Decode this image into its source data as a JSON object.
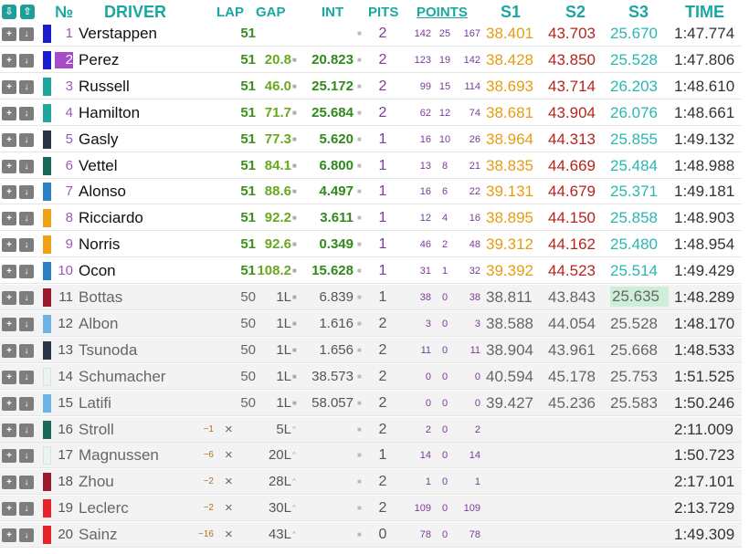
{
  "header": {
    "icon_down": "⇩",
    "icon_up": "⇧",
    "no": "№",
    "driver": "DRIVER",
    "lap": "LAP",
    "gap": "GAP",
    "int": "INT",
    "pits": "PITS",
    "points": "POINTS",
    "s1": "S1",
    "s2": "S2",
    "s3": "S3",
    "time": "TIME"
  },
  "controls": {
    "up_symbol": "+",
    "down_symbol": "↓",
    "marker": "■",
    "delta_marker": "^"
  },
  "colors": {
    "accent": "#1aa7a1",
    "sector1": "#e89b12",
    "sector2": "#b3261e",
    "sector3": "#29b7b2",
    "best_sector_bg": "#cdeed9"
  },
  "rows": [
    {
      "pos": "1",
      "name": "Verstappen",
      "color": "#1b1bd0",
      "lap": "51",
      "lap_delta": "",
      "gap": "",
      "int": "",
      "pits": "2",
      "pts_a": "142",
      "pts_b": "25",
      "pts_c": "167",
      "s1": "38.401",
      "s2": "43.703",
      "s3": "25.670",
      "time": "1:47.774",
      "lapped": false,
      "retired": false
    },
    {
      "pos": "2",
      "name": "Perez",
      "color": "#1b1bd0",
      "lap": "51",
      "lap_delta": "",
      "gap": "20.8",
      "int": "20.823",
      "pits": "2",
      "pts_a": "123",
      "pts_b": "19",
      "pts_c": "142",
      "s1": "38.428",
      "s2": "43.850",
      "s3": "25.528",
      "time": "1:47.806",
      "lapped": false,
      "retired": false,
      "badge": true
    },
    {
      "pos": "3",
      "name": "Russell",
      "color": "#1fa79d",
      "lap": "51",
      "lap_delta": "",
      "gap": "46.0",
      "int": "25.172",
      "pits": "2",
      "pts_a": "99",
      "pts_b": "15",
      "pts_c": "114",
      "s1": "38.693",
      "s2": "43.714",
      "s3": "26.203",
      "time": "1:48.610",
      "lapped": false,
      "retired": false
    },
    {
      "pos": "4",
      "name": "Hamilton",
      "color": "#1fa79d",
      "lap": "51",
      "lap_delta": "",
      "gap": "71.7",
      "int": "25.684",
      "pits": "2",
      "pts_a": "62",
      "pts_b": "12",
      "pts_c": "74",
      "s1": "38.681",
      "s2": "43.904",
      "s3": "26.076",
      "time": "1:48.661",
      "lapped": false,
      "retired": false
    },
    {
      "pos": "5",
      "name": "Gasly",
      "color": "#2b3446",
      "lap": "51",
      "lap_delta": "",
      "gap": "77.3",
      "int": "5.620",
      "pits": "1",
      "pts_a": "16",
      "pts_b": "10",
      "pts_c": "26",
      "s1": "38.964",
      "s2": "44.313",
      "s3": "25.855",
      "time": "1:49.132",
      "lapped": false,
      "retired": false
    },
    {
      "pos": "6",
      "name": "Vettel",
      "color": "#1a6a57",
      "lap": "51",
      "lap_delta": "",
      "gap": "84.1",
      "int": "6.800",
      "pits": "1",
      "pts_a": "13",
      "pts_b": "8",
      "pts_c": "21",
      "s1": "38.835",
      "s2": "44.669",
      "s3": "25.484",
      "time": "1:48.988",
      "lapped": false,
      "retired": false
    },
    {
      "pos": "7",
      "name": "Alonso",
      "color": "#2a82c4",
      "lap": "51",
      "lap_delta": "",
      "gap": "88.6",
      "int": "4.497",
      "pits": "1",
      "pts_a": "16",
      "pts_b": "6",
      "pts_c": "22",
      "s1": "39.131",
      "s2": "44.679",
      "s3": "25.371",
      "time": "1:49.181",
      "lapped": false,
      "retired": false
    },
    {
      "pos": "8",
      "name": "Ricciardo",
      "color": "#f0a114",
      "lap": "51",
      "lap_delta": "",
      "gap": "92.2",
      "int": "3.611",
      "pits": "1",
      "pts_a": "12",
      "pts_b": "4",
      "pts_c": "16",
      "s1": "38.895",
      "s2": "44.150",
      "s3": "25.858",
      "time": "1:48.903",
      "lapped": false,
      "retired": false
    },
    {
      "pos": "9",
      "name": "Norris",
      "color": "#f0a114",
      "lap": "51",
      "lap_delta": "",
      "gap": "92.6",
      "int": "0.349",
      "pits": "1",
      "pts_a": "46",
      "pts_b": "2",
      "pts_c": "48",
      "s1": "39.312",
      "s2": "44.162",
      "s3": "25.480",
      "time": "1:48.954",
      "lapped": false,
      "retired": false
    },
    {
      "pos": "10",
      "name": "Ocon",
      "color": "#2a82c4",
      "lap": "51",
      "lap_delta": "",
      "gap": "108.2",
      "int": "15.628",
      "pits": "1",
      "pts_a": "31",
      "pts_b": "1",
      "pts_c": "32",
      "s1": "39.392",
      "s2": "44.523",
      "s3": "25.514",
      "time": "1:49.429",
      "lapped": false,
      "retired": false
    },
    {
      "pos": "11",
      "name": "Bottas",
      "color": "#9b1b2e",
      "lap": "50",
      "lap_delta": "",
      "gap": "1L",
      "int": "6.839",
      "pits": "1",
      "pts_a": "38",
      "pts_b": "0",
      "pts_c": "38",
      "s1": "38.811",
      "s2": "43.843",
      "s3": "25.635",
      "time": "1:48.289",
      "lapped": true,
      "retired": false,
      "best_s3": true
    },
    {
      "pos": "12",
      "name": "Albon",
      "color": "#6fb2e6",
      "lap": "50",
      "lap_delta": "",
      "gap": "1L",
      "int": "1.616",
      "pits": "2",
      "pts_a": "3",
      "pts_b": "0",
      "pts_c": "3",
      "s1": "38.588",
      "s2": "44.054",
      "s3": "25.528",
      "time": "1:48.170",
      "lapped": true,
      "retired": false
    },
    {
      "pos": "13",
      "name": "Tsunoda",
      "color": "#2b3446",
      "lap": "50",
      "lap_delta": "",
      "gap": "1L",
      "int": "1.656",
      "pits": "2",
      "pts_a": "11",
      "pts_b": "0",
      "pts_c": "11",
      "s1": "38.904",
      "s2": "43.961",
      "s3": "25.668",
      "time": "1:48.533",
      "lapped": true,
      "retired": false
    },
    {
      "pos": "14",
      "name": "Schumacher",
      "color": "#eaf2f4",
      "lap": "50",
      "lap_delta": "",
      "gap": "1L",
      "int": "38.573",
      "pits": "2",
      "pts_a": "0",
      "pts_b": "0",
      "pts_c": "0",
      "s1": "40.594",
      "s2": "45.178",
      "s3": "25.753",
      "time": "1:51.525",
      "lapped": true,
      "retired": false
    },
    {
      "pos": "15",
      "name": "Latifi",
      "color": "#6fb2e6",
      "lap": "50",
      "lap_delta": "",
      "gap": "1L",
      "int": "58.057",
      "pits": "2",
      "pts_a": "0",
      "pts_b": "0",
      "pts_c": "0",
      "s1": "39.427",
      "s2": "45.236",
      "s3": "25.583",
      "time": "1:50.246",
      "lapped": true,
      "retired": false
    },
    {
      "pos": "16",
      "name": "Stroll",
      "color": "#1a6a57",
      "lap": "×",
      "lap_delta": "−1",
      "gap": "5L",
      "int": "",
      "pits": "2",
      "pts_a": "2",
      "pts_b": "0",
      "pts_c": "2",
      "s1": "",
      "s2": "",
      "s3": "",
      "time": "2:11.009",
      "lapped": true,
      "retired": true
    },
    {
      "pos": "17",
      "name": "Magnussen",
      "color": "#eaf2f4",
      "lap": "×",
      "lap_delta": "−6",
      "gap": "20L",
      "int": "",
      "pits": "1",
      "pts_a": "14",
      "pts_b": "0",
      "pts_c": "14",
      "s1": "",
      "s2": "",
      "s3": "",
      "time": "1:50.723",
      "lapped": true,
      "retired": true
    },
    {
      "pos": "18",
      "name": "Zhou",
      "color": "#9b1b2e",
      "lap": "×",
      "lap_delta": "−2",
      "gap": "28L",
      "int": "",
      "pits": "2",
      "pts_a": "1",
      "pts_b": "0",
      "pts_c": "1",
      "s1": "",
      "s2": "",
      "s3": "",
      "time": "2:17.101",
      "lapped": true,
      "retired": true
    },
    {
      "pos": "19",
      "name": "Leclerc",
      "color": "#e5242a",
      "lap": "×",
      "lap_delta": "−2",
      "gap": "30L",
      "int": "",
      "pits": "2",
      "pts_a": "109",
      "pts_b": "0",
      "pts_c": "109",
      "s1": "",
      "s2": "",
      "s3": "",
      "time": "2:13.729",
      "lapped": true,
      "retired": true
    },
    {
      "pos": "20",
      "name": "Sainz",
      "color": "#e5242a",
      "lap": "×",
      "lap_delta": "−16",
      "gap": "43L",
      "int": "",
      "pits": "0",
      "pts_a": "78",
      "pts_b": "0",
      "pts_c": "78",
      "s1": "",
      "s2": "",
      "s3": "",
      "time": "1:49.309",
      "lapped": true,
      "retired": true
    }
  ]
}
